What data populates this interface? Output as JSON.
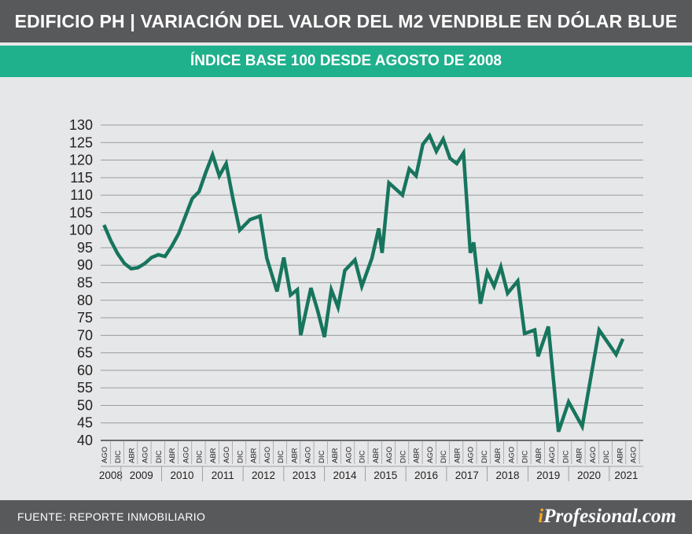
{
  "header": {
    "title": "EDIFICIO PH | VARIACIÓN DEL VALOR DEL M2 VENDIBLE EN DÓLAR BLUE",
    "subtitle": "ÍNDICE BASE 100 DESDE AGOSTO DE 2008"
  },
  "footer": {
    "source": "FUENTE: REPORTE INMOBILIARIO",
    "brand_prefix": "i",
    "brand_rest": "Profesional.com"
  },
  "colors": {
    "line": "#17755e",
    "grid": "#9a9b9e",
    "accent": "#1fb08c",
    "bar": "#58595b",
    "brand_i": "#f6a623"
  },
  "chart_data": {
    "type": "line",
    "title": "EDIFICIO PH | VARIACIÓN DEL VALOR DEL M2 VENDIBLE EN DÓLAR BLUE",
    "subtitle": "ÍNDICE BASE 100 DESDE AGOSTO DE 2008",
    "xlabel": "",
    "ylabel": "",
    "ylim": [
      40,
      130
    ],
    "yticks": [
      130,
      125,
      120,
      115,
      110,
      105,
      100,
      95,
      90,
      85,
      80,
      75,
      70,
      65,
      60,
      55,
      50,
      45,
      40
    ],
    "grid": true,
    "x_start": "2008-08",
    "x_end": "2021-10",
    "month_ticks": [
      {
        "label": "AGO",
        "date": "2008-08"
      },
      {
        "label": "DIC",
        "date": "2008-12"
      },
      {
        "label": "ABR",
        "date": "2009-04"
      },
      {
        "label": "AGO",
        "date": "2009-08"
      },
      {
        "label": "DIC",
        "date": "2009-12"
      },
      {
        "label": "ABR",
        "date": "2010-04"
      },
      {
        "label": "AGO",
        "date": "2010-08"
      },
      {
        "label": "DIC",
        "date": "2010-12"
      },
      {
        "label": "ABR",
        "date": "2011-04"
      },
      {
        "label": "AGO",
        "date": "2011-08"
      },
      {
        "label": "DIC",
        "date": "2011-12"
      },
      {
        "label": "ABR",
        "date": "2012-04"
      },
      {
        "label": "AGO",
        "date": "2012-08"
      },
      {
        "label": "DIC",
        "date": "2012-12"
      },
      {
        "label": "ABR",
        "date": "2013-04"
      },
      {
        "label": "AGO",
        "date": "2013-08"
      },
      {
        "label": "DIC",
        "date": "2013-12"
      },
      {
        "label": "ABR",
        "date": "2014-04"
      },
      {
        "label": "AGO",
        "date": "2014-08"
      },
      {
        "label": "DIC",
        "date": "2014-12"
      },
      {
        "label": "ABR",
        "date": "2015-04"
      },
      {
        "label": "AGO",
        "date": "2015-08"
      },
      {
        "label": "DIC",
        "date": "2015-12"
      },
      {
        "label": "ABR",
        "date": "2016-04"
      },
      {
        "label": "AGO",
        "date": "2016-08"
      },
      {
        "label": "DIC",
        "date": "2016-12"
      },
      {
        "label": "ABR",
        "date": "2017-04"
      },
      {
        "label": "AGO",
        "date": "2017-08"
      },
      {
        "label": "DIC",
        "date": "2017-12"
      },
      {
        "label": "ABR",
        "date": "2018-04"
      },
      {
        "label": "AGO",
        "date": "2018-08"
      },
      {
        "label": "DIC",
        "date": "2018-12"
      },
      {
        "label": "ABR",
        "date": "2019-04"
      },
      {
        "label": "AGO",
        "date": "2019-08"
      },
      {
        "label": "DIC",
        "date": "2019-12"
      },
      {
        "label": "ABR",
        "date": "2020-04"
      },
      {
        "label": "AGO",
        "date": "2020-08"
      },
      {
        "label": "DIC",
        "date": "2020-12"
      },
      {
        "label": "ABR",
        "date": "2021-04"
      },
      {
        "label": "AGO",
        "date": "2021-08"
      }
    ],
    "years": [
      "2008",
      "2009",
      "2010",
      "2011",
      "2012",
      "2013",
      "2014",
      "2015",
      "2016",
      "2017",
      "2018",
      "2019",
      "2020",
      "2021"
    ],
    "series": [
      {
        "points": [
          {
            "x": "2008-08",
            "y": 101.5
          },
          {
            "x": "2008-10",
            "y": 97
          },
          {
            "x": "2008-12",
            "y": 93.3
          },
          {
            "x": "2009-02",
            "y": 90.5
          },
          {
            "x": "2009-04",
            "y": 89
          },
          {
            "x": "2009-06",
            "y": 89.3
          },
          {
            "x": "2009-08",
            "y": 90.5
          },
          {
            "x": "2009-10",
            "y": 92.2
          },
          {
            "x": "2009-12",
            "y": 93
          },
          {
            "x": "2010-02",
            "y": 92.5
          },
          {
            "x": "2010-04",
            "y": 95.5
          },
          {
            "x": "2010-06",
            "y": 99
          },
          {
            "x": "2010-08",
            "y": 104
          },
          {
            "x": "2010-10",
            "y": 109
          },
          {
            "x": "2010-12",
            "y": 111
          },
          {
            "x": "2011-02",
            "y": 116.5
          },
          {
            "x": "2011-04",
            "y": 121.5
          },
          {
            "x": "2011-06",
            "y": 115.5
          },
          {
            "x": "2011-08",
            "y": 119
          },
          {
            "x": "2011-10",
            "y": 109
          },
          {
            "x": "2011-12",
            "y": 100
          },
          {
            "x": "2012-03",
            "y": 103
          },
          {
            "x": "2012-06",
            "y": 104
          },
          {
            "x": "2012-08",
            "y": 92
          },
          {
            "x": "2012-11",
            "y": 82.5
          },
          {
            "x": "2013-01",
            "y": 92.2
          },
          {
            "x": "2013-03",
            "y": 81.5
          },
          {
            "x": "2013-05",
            "y": 83
          },
          {
            "x": "2013-06",
            "y": 70
          },
          {
            "x": "2013-09",
            "y": 83.5
          },
          {
            "x": "2013-11",
            "y": 77
          },
          {
            "x": "2014-01",
            "y": 69.5
          },
          {
            "x": "2014-03",
            "y": 83
          },
          {
            "x": "2014-05",
            "y": 78
          },
          {
            "x": "2014-07",
            "y": 88.5
          },
          {
            "x": "2014-10",
            "y": 91.5
          },
          {
            "x": "2014-12",
            "y": 84
          },
          {
            "x": "2015-03",
            "y": 92
          },
          {
            "x": "2015-05",
            "y": 100.5
          },
          {
            "x": "2015-06",
            "y": 93.5
          },
          {
            "x": "2015-08",
            "y": 113.5
          },
          {
            "x": "2015-12",
            "y": 110
          },
          {
            "x": "2016-02",
            "y": 117.5
          },
          {
            "x": "2016-04",
            "y": 115.5
          },
          {
            "x": "2016-06",
            "y": 124.5
          },
          {
            "x": "2016-08",
            "y": 127
          },
          {
            "x": "2016-10",
            "y": 122.5
          },
          {
            "x": "2016-12",
            "y": 126
          },
          {
            "x": "2017-02",
            "y": 120.5
          },
          {
            "x": "2017-04",
            "y": 119
          },
          {
            "x": "2017-06",
            "y": 122
          },
          {
            "x": "2017-08",
            "y": 93.5
          },
          {
            "x": "2017-09",
            "y": 96.5
          },
          {
            "x": "2017-11",
            "y": 79
          },
          {
            "x": "2018-01",
            "y": 88
          },
          {
            "x": "2018-03",
            "y": 84
          },
          {
            "x": "2018-05",
            "y": 89.5
          },
          {
            "x": "2018-07",
            "y": 82
          },
          {
            "x": "2018-10",
            "y": 85.5
          },
          {
            "x": "2018-12",
            "y": 70.5
          },
          {
            "x": "2019-03",
            "y": 71.5
          },
          {
            "x": "2019-04",
            "y": 64
          },
          {
            "x": "2019-07",
            "y": 72.5
          },
          {
            "x": "2019-10",
            "y": 42.5
          },
          {
            "x": "2020-01",
            "y": 51
          },
          {
            "x": "2020-05",
            "y": 44
          },
          {
            "x": "2020-10",
            "y": 71.5
          },
          {
            "x": "2021-03",
            "y": 64.5
          },
          {
            "x": "2021-05",
            "y": 69
          }
        ]
      }
    ]
  }
}
